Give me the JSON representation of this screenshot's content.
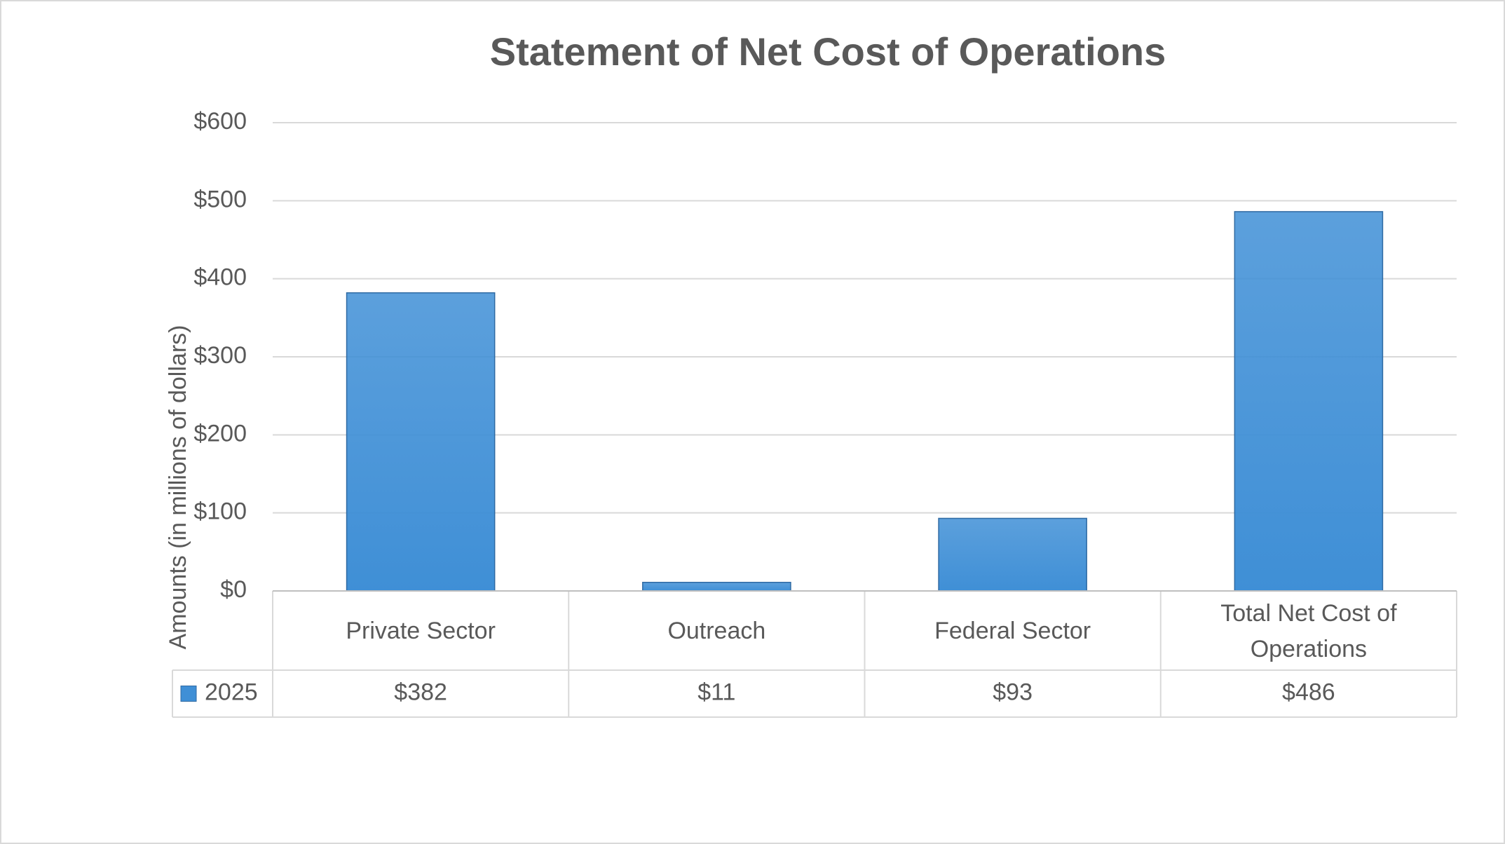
{
  "chart_data": {
    "type": "bar",
    "title": "Statement of Net Cost of Operations",
    "y_label": "Amounts (in millions of dollars)",
    "categories": [
      "Private Sector",
      "Outreach",
      "Federal Sector",
      "Total Net Cost of Operations"
    ],
    "series": [
      {
        "name": "2025",
        "color": "#3f8fd6",
        "values": [
          382,
          11,
          93,
          486
        ],
        "value_labels": [
          "$382",
          "$11",
          "$93",
          "$486"
        ]
      }
    ],
    "ylim": [
      0,
      600
    ],
    "yticks": [
      {
        "value": 0,
        "label": "$0"
      },
      {
        "value": 100,
        "label": "$100"
      },
      {
        "value": 200,
        "label": "$200"
      },
      {
        "value": 300,
        "label": "$300"
      },
      {
        "value": 400,
        "label": "$400"
      },
      {
        "value": 500,
        "label": "$500"
      },
      {
        "value": 600,
        "label": "$600"
      }
    ],
    "grid": true,
    "data_table": true
  }
}
